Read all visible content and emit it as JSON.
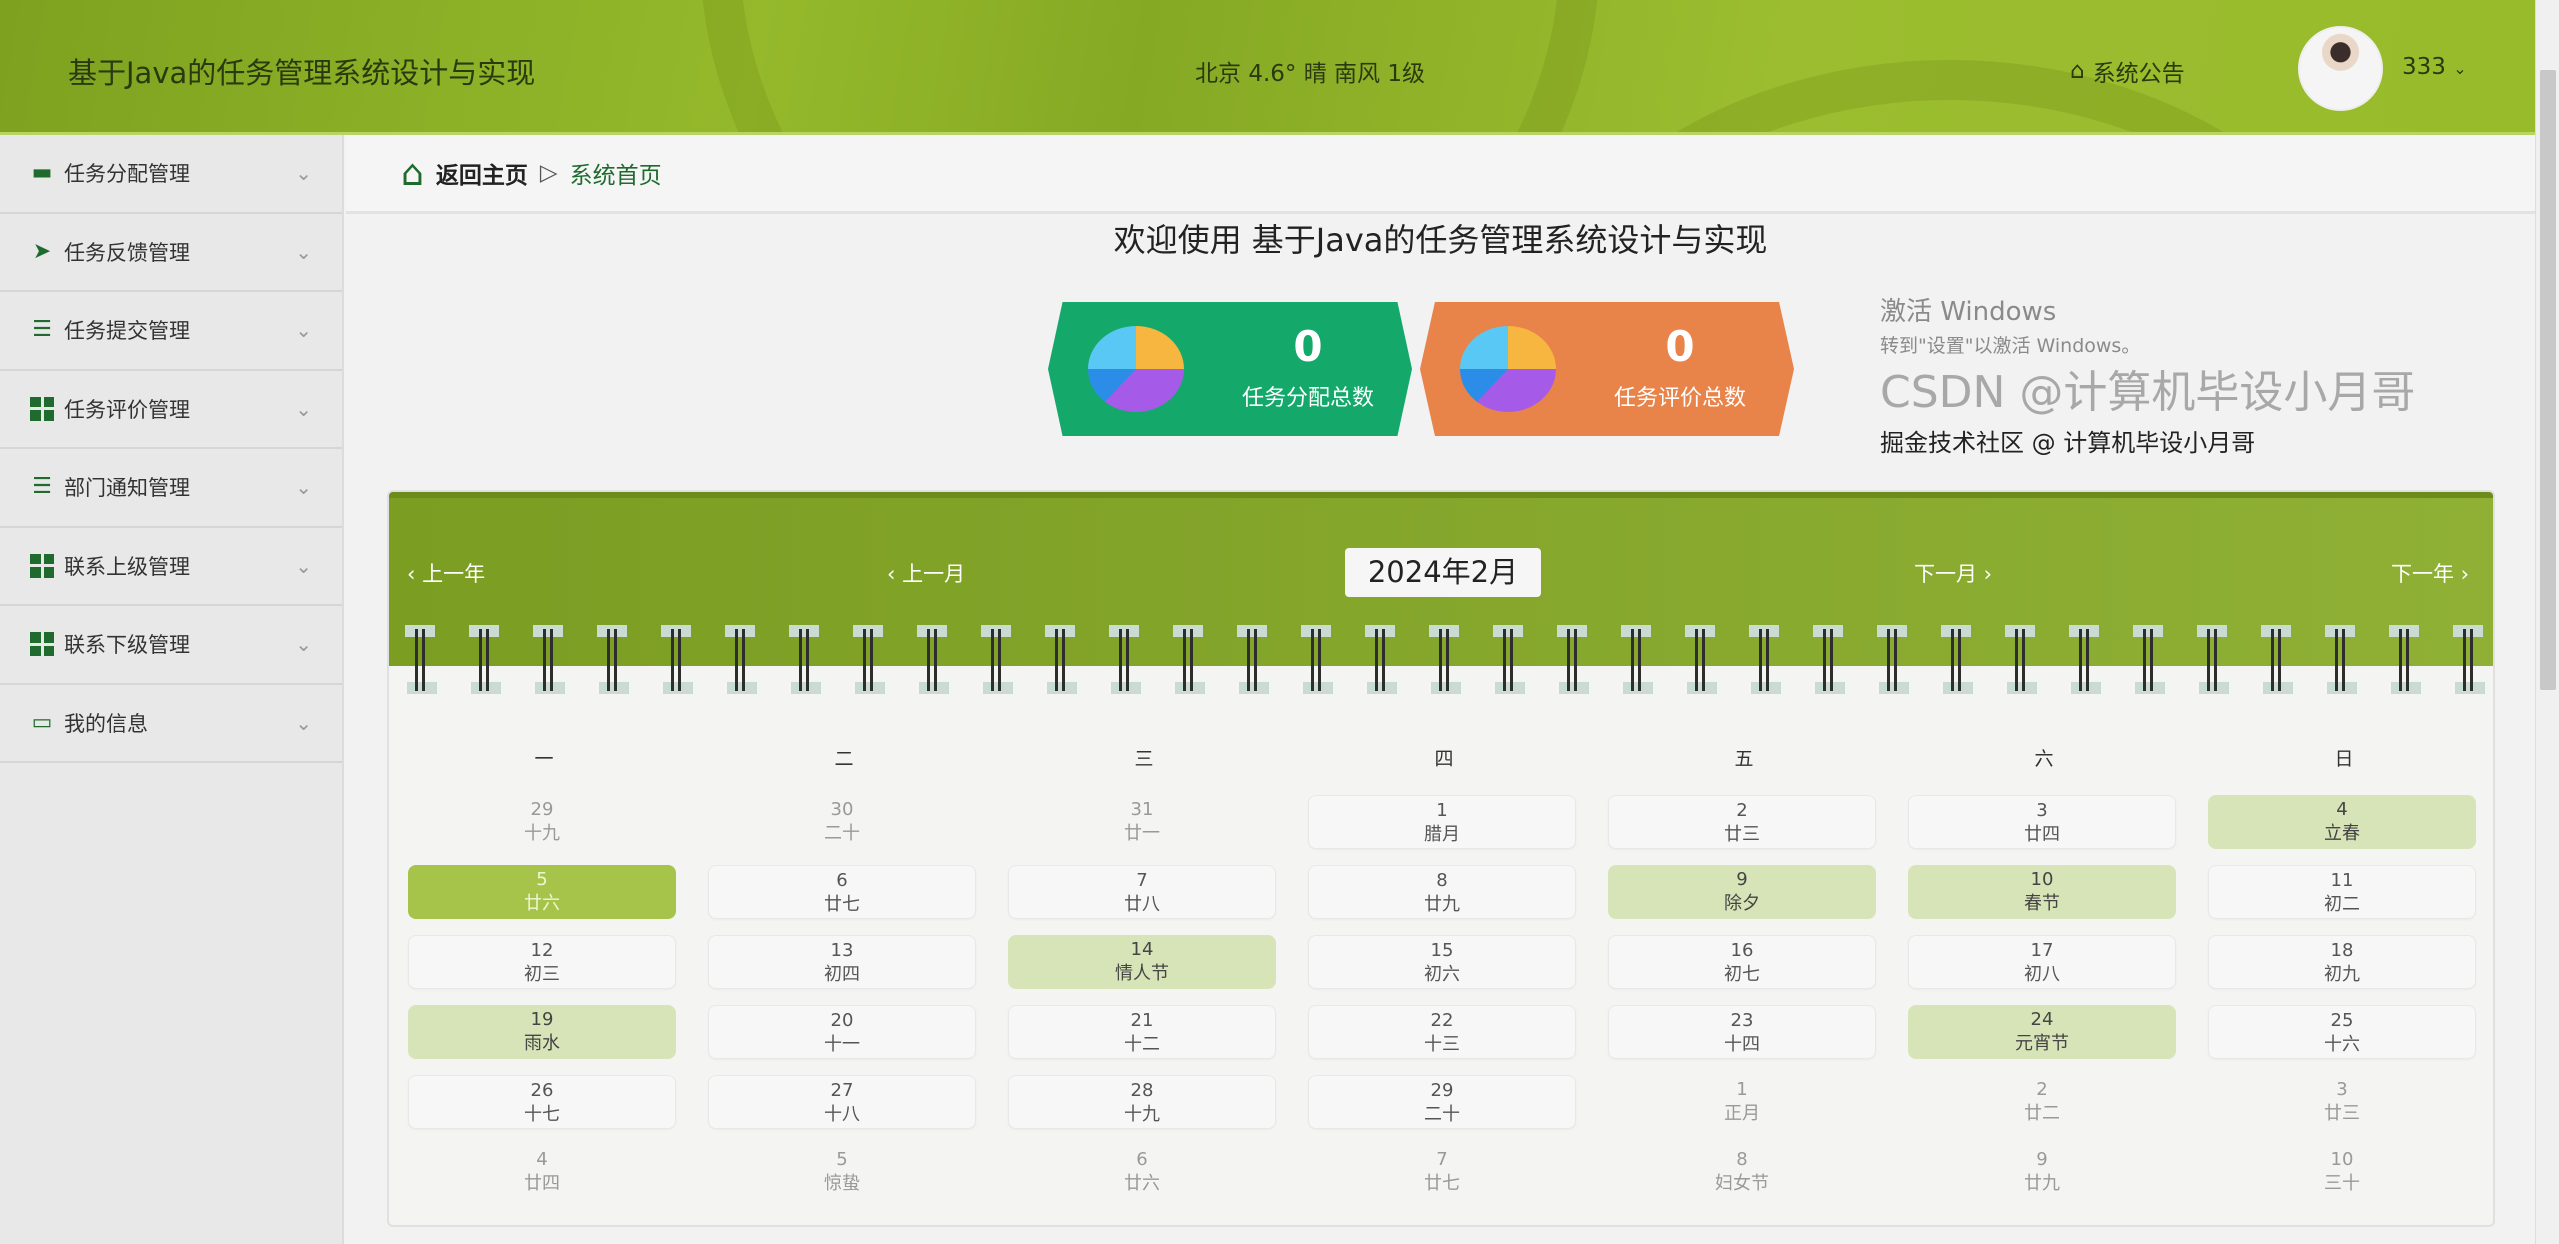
{
  "header": {
    "title": "基于Java的任务管理系统设计与实现",
    "weather": "北京 4.6° 晴 南风 1级",
    "notice_label": "系统公告",
    "username": "333"
  },
  "sidebar": {
    "items": [
      {
        "label": "任务分配管理",
        "icon": "monitor"
      },
      {
        "label": "任务反馈管理",
        "icon": "paper-plane"
      },
      {
        "label": "任务提交管理",
        "icon": "sliders"
      },
      {
        "label": "任务评价管理",
        "icon": "grid"
      },
      {
        "label": "部门通知管理",
        "icon": "list-indent"
      },
      {
        "label": "联系上级管理",
        "icon": "grid"
      },
      {
        "label": "联系下级管理",
        "icon": "grid"
      },
      {
        "label": "我的信息",
        "icon": "card"
      }
    ]
  },
  "breadcrumb": {
    "home": "返回主页",
    "current": "系统首页"
  },
  "welcome": "欢迎使用 基于Java的任务管理系统设计与实现",
  "stats": [
    {
      "value": "0",
      "label": "任务分配总数",
      "color": "#14a96b"
    },
    {
      "value": "0",
      "label": "任务评价总数",
      "color": "#e8834a"
    }
  ],
  "calendar": {
    "prev_year": "上一年",
    "prev_month": "上一月",
    "month": "2024年2月",
    "next_month": "下一月",
    "next_year": "下一年",
    "weekdays": [
      "一",
      "二",
      "三",
      "四",
      "五",
      "六",
      "日"
    ],
    "days": [
      {
        "d": "29",
        "l": "十九",
        "t": "other"
      },
      {
        "d": "30",
        "l": "二十",
        "t": "other"
      },
      {
        "d": "31",
        "l": "廿一",
        "t": "other"
      },
      {
        "d": "1",
        "l": "腊月",
        "t": "normal"
      },
      {
        "d": "2",
        "l": "廿三",
        "t": "normal"
      },
      {
        "d": "3",
        "l": "廿四",
        "t": "normal"
      },
      {
        "d": "4",
        "l": "立春",
        "t": "festival"
      },
      {
        "d": "5",
        "l": "廿六",
        "t": "today"
      },
      {
        "d": "6",
        "l": "廿七",
        "t": "normal"
      },
      {
        "d": "7",
        "l": "廿八",
        "t": "normal"
      },
      {
        "d": "8",
        "l": "廿九",
        "t": "normal"
      },
      {
        "d": "9",
        "l": "除夕",
        "t": "festival"
      },
      {
        "d": "10",
        "l": "春节",
        "t": "festival"
      },
      {
        "d": "11",
        "l": "初二",
        "t": "normal"
      },
      {
        "d": "12",
        "l": "初三",
        "t": "normal"
      },
      {
        "d": "13",
        "l": "初四",
        "t": "normal"
      },
      {
        "d": "14",
        "l": "情人节",
        "t": "festival"
      },
      {
        "d": "15",
        "l": "初六",
        "t": "normal"
      },
      {
        "d": "16",
        "l": "初七",
        "t": "normal"
      },
      {
        "d": "17",
        "l": "初八",
        "t": "normal"
      },
      {
        "d": "18",
        "l": "初九",
        "t": "normal"
      },
      {
        "d": "19",
        "l": "雨水",
        "t": "festival"
      },
      {
        "d": "20",
        "l": "十一",
        "t": "normal"
      },
      {
        "d": "21",
        "l": "十二",
        "t": "normal"
      },
      {
        "d": "22",
        "l": "十三",
        "t": "normal"
      },
      {
        "d": "23",
        "l": "十四",
        "t": "normal"
      },
      {
        "d": "24",
        "l": "元宵节",
        "t": "festival"
      },
      {
        "d": "25",
        "l": "十六",
        "t": "normal"
      },
      {
        "d": "26",
        "l": "十七",
        "t": "normal"
      },
      {
        "d": "27",
        "l": "十八",
        "t": "normal"
      },
      {
        "d": "28",
        "l": "十九",
        "t": "normal"
      },
      {
        "d": "29",
        "l": "二十",
        "t": "normal"
      },
      {
        "d": "1",
        "l": "正月",
        "t": "other"
      },
      {
        "d": "2",
        "l": "廿二",
        "t": "other"
      },
      {
        "d": "3",
        "l": "廿三",
        "t": "other"
      },
      {
        "d": "4",
        "l": "廿四",
        "t": "other"
      },
      {
        "d": "5",
        "l": "惊蛰",
        "t": "other"
      },
      {
        "d": "6",
        "l": "廿六",
        "t": "other"
      },
      {
        "d": "7",
        "l": "廿七",
        "t": "other"
      },
      {
        "d": "8",
        "l": "妇女节",
        "t": "other"
      },
      {
        "d": "9",
        "l": "廿九",
        "t": "other"
      },
      {
        "d": "10",
        "l": "三十",
        "t": "other"
      }
    ]
  },
  "watermarks": {
    "activate": "激活 Windows",
    "activate_sub": "转到\"设置\"以激活 Windows。",
    "csdn": "CSDN @计算机毕设小月哥",
    "juejin": "掘金技术社区 @ 计算机毕设小月哥"
  },
  "colors": {
    "header": "#95b92b",
    "accent": "#1f6b2e",
    "today": "#a6c44a",
    "festival": "#d7e4b8"
  }
}
